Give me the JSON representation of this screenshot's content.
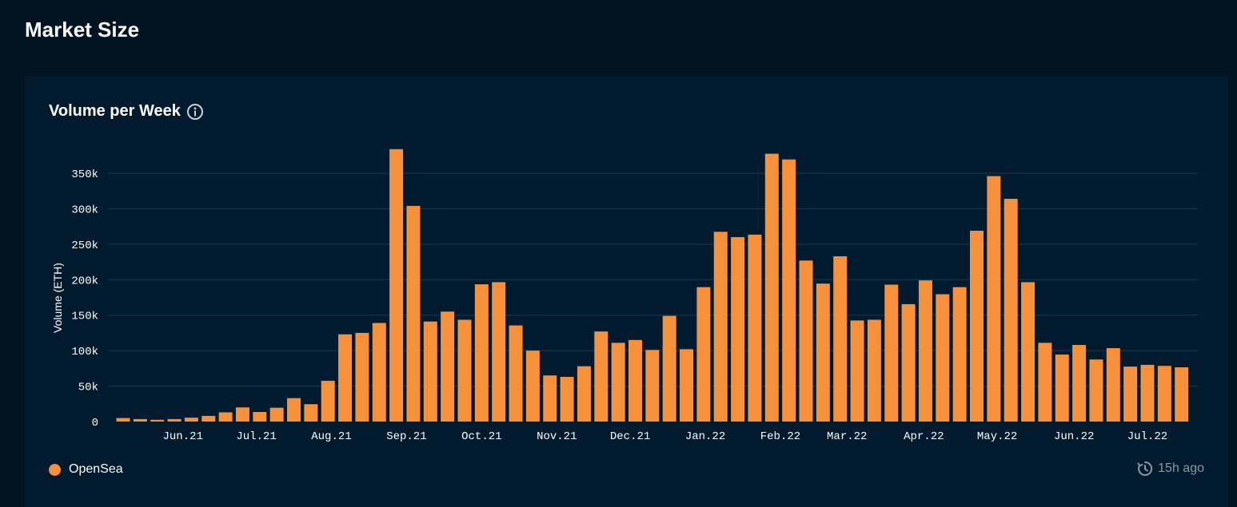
{
  "page": {
    "title": "Market Size"
  },
  "card": {
    "title": "Volume per Week",
    "info_icon": "info-icon",
    "updated_icon": "history-clock-icon",
    "updated_text": "15h ago"
  },
  "colors": {
    "bar": "#f7903a",
    "grid": "#1e3a4c",
    "background": "#011a2d"
  },
  "chart_data": {
    "type": "bar",
    "title": "Volume per Week",
    "xlabel": "",
    "ylabel": "Volume (ETH)",
    "ylim": [
      0,
      385000
    ],
    "yticks": [
      0,
      50000,
      100000,
      150000,
      200000,
      250000,
      300000,
      350000
    ],
    "ytick_labels": [
      "0",
      "50k",
      "100k",
      "150k",
      "200k",
      "250k",
      "300k",
      "350k"
    ],
    "grid": true,
    "legend": "bottom-left",
    "xtick_labels": [
      {
        "label": "Jun.21",
        "index": 3.5
      },
      {
        "label": "Jul.21",
        "index": 7.8
      },
      {
        "label": "Aug.21",
        "index": 12.2
      },
      {
        "label": "Sep.21",
        "index": 16.6
      },
      {
        "label": "Oct.21",
        "index": 21.0
      },
      {
        "label": "Nov.21",
        "index": 25.4
      },
      {
        "label": "Dec.21",
        "index": 29.7
      },
      {
        "label": "Jan.22",
        "index": 34.1
      },
      {
        "label": "Feb.22",
        "index": 38.5
      },
      {
        "label": "Mar.22",
        "index": 42.4
      },
      {
        "label": "Apr.22",
        "index": 46.9
      },
      {
        "label": "May.22",
        "index": 51.2
      },
      {
        "label": "Jun.22",
        "index": 55.7
      },
      {
        "label": "Jul.22",
        "index": 60.0
      }
    ],
    "series": [
      {
        "name": "OpenSea",
        "color": "#f7903a",
        "values": [
          5000,
          3500,
          2500,
          3500,
          5500,
          8000,
          13000,
          20000,
          13500,
          19500,
          33000,
          24500,
          57500,
          123000,
          125000,
          139000,
          384000,
          304000,
          141000,
          155000,
          143500,
          193500,
          196500,
          135500,
          100000,
          65000,
          63000,
          78000,
          127000,
          111000,
          115000,
          101000,
          149000,
          102000,
          189500,
          267500,
          260000,
          263500,
          377500,
          369500,
          227000,
          194500,
          233000,
          142500,
          143500,
          193000,
          165500,
          199000,
          179500,
          189500,
          269000,
          346000,
          314000,
          196500,
          111000,
          94500,
          108000,
          87500,
          103500,
          77500,
          80000,
          78500,
          76500
        ]
      }
    ]
  }
}
